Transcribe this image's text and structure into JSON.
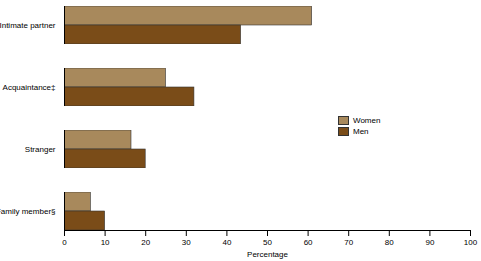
{
  "chart_data": {
    "type": "bar",
    "orientation": "horizontal",
    "categories": [
      "Intimate partner",
      "Acquaintance‡",
      "Stranger",
      "Family member§"
    ],
    "series": [
      {
        "name": "Women",
        "color": "#a8895c",
        "values": [
          61,
          25,
          16.5,
          6.5
        ]
      },
      {
        "name": "Men",
        "color": "#7a4c18",
        "values": [
          43.5,
          32,
          20,
          10
        ]
      }
    ],
    "x_label": "Percentage",
    "xlim": [
      0,
      100
    ],
    "xticks": [
      0,
      10,
      20,
      30,
      40,
      50,
      60,
      70,
      80,
      90,
      100
    ],
    "grid": false,
    "legend": "right"
  }
}
